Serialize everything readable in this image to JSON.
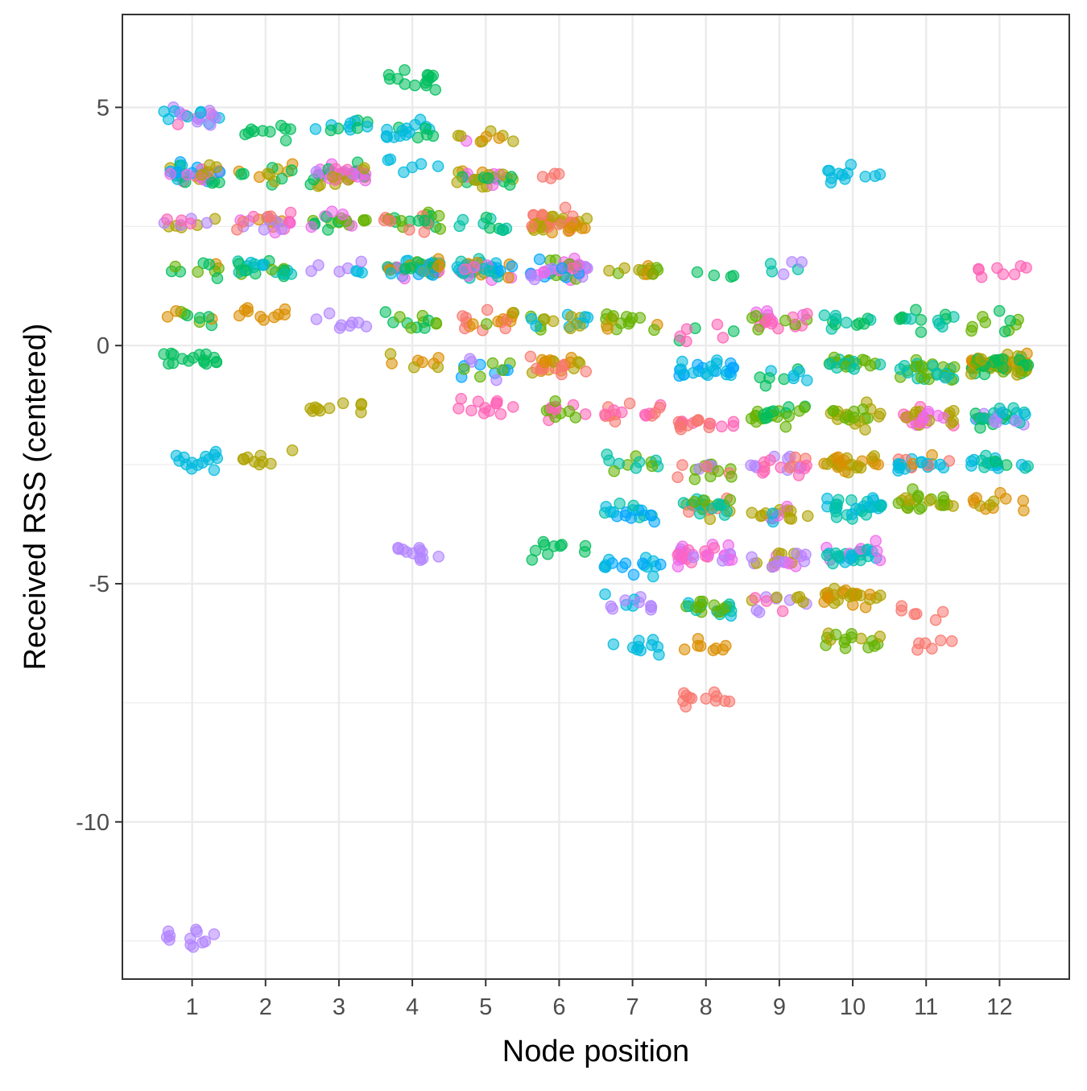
{
  "chart_data": {
    "type": "scatter",
    "xlabel": "Node position",
    "ylabel": "Received RSS (centered)",
    "x_ticks": [
      1,
      2,
      3,
      4,
      5,
      6,
      7,
      8,
      9,
      10,
      11,
      12
    ],
    "y_ticks": [
      5,
      0,
      -5,
      -10
    ],
    "xlim": [
      0.05,
      12.95
    ],
    "ylim": [
      -13.3,
      6.95
    ],
    "grid": true,
    "legend": "none",
    "point_alpha": 0.55,
    "palette": [
      "#F8766D",
      "#DB8E00",
      "#AEA200",
      "#64B200",
      "#00BD5C",
      "#00C1A7",
      "#00BADE",
      "#00A6FF",
      "#B385FF",
      "#EF67EB",
      "#FF63B6"
    ],
    "clusters": [
      {
        "x": 1,
        "y": 4.8,
        "n": 22,
        "c": [
          10,
          8,
          6
        ]
      },
      {
        "x": 1,
        "y": 3.6,
        "n": 38,
        "c": [
          9,
          6,
          7,
          10,
          2,
          4
        ]
      },
      {
        "x": 1,
        "y": 2.6,
        "n": 12,
        "c": [
          2,
          8,
          10
        ]
      },
      {
        "x": 1,
        "y": 1.6,
        "n": 10,
        "c": [
          4,
          3,
          1
        ]
      },
      {
        "x": 1,
        "y": 0.6,
        "n": 10,
        "c": [
          3,
          4,
          1
        ]
      },
      {
        "x": 1,
        "y": -0.3,
        "n": 16,
        "c": [
          4
        ]
      },
      {
        "x": 1,
        "y": -2.4,
        "n": 14,
        "c": [
          6
        ]
      },
      {
        "x": 1,
        "y": -12.4,
        "n": 12,
        "c": [
          8
        ]
      },
      {
        "x": 2,
        "y": 4.5,
        "n": 10,
        "c": [
          4
        ]
      },
      {
        "x": 2,
        "y": 3.6,
        "n": 14,
        "c": [
          4,
          2,
          1
        ]
      },
      {
        "x": 2,
        "y": 2.6,
        "n": 24,
        "c": [
          0,
          1,
          10,
          8,
          9
        ]
      },
      {
        "x": 2,
        "y": 1.6,
        "n": 26,
        "c": [
          5,
          6,
          3,
          4
        ]
      },
      {
        "x": 2,
        "y": 0.7,
        "n": 10,
        "c": [
          1
        ]
      },
      {
        "x": 2,
        "y": -2.4,
        "n": 9,
        "c": [
          2
        ]
      },
      {
        "x": 3,
        "y": 4.6,
        "n": 12,
        "c": [
          4,
          6
        ]
      },
      {
        "x": 3,
        "y": 3.6,
        "n": 44,
        "c": [
          8,
          9,
          10,
          4,
          2
        ]
      },
      {
        "x": 3,
        "y": 2.6,
        "n": 20,
        "c": [
          3,
          4,
          9
        ]
      },
      {
        "x": 3,
        "y": 1.6,
        "n": 8,
        "c": [
          6,
          8
        ]
      },
      {
        "x": 3,
        "y": 0.5,
        "n": 8,
        "c": [
          8
        ]
      },
      {
        "x": 3,
        "y": -1.3,
        "n": 10,
        "c": [
          2
        ]
      },
      {
        "x": 4,
        "y": 5.6,
        "n": 14,
        "c": [
          4
        ]
      },
      {
        "x": 4,
        "y": 4.5,
        "n": 18,
        "c": [
          4,
          6
        ]
      },
      {
        "x": 4,
        "y": 3.8,
        "n": 6,
        "c": [
          6
        ]
      },
      {
        "x": 4,
        "y": 2.6,
        "n": 24,
        "c": [
          3,
          4,
          0
        ]
      },
      {
        "x": 4,
        "y": 1.6,
        "n": 46,
        "c": [
          6,
          7,
          2,
          1,
          9,
          4
        ]
      },
      {
        "x": 4,
        "y": 0.5,
        "n": 12,
        "c": [
          3,
          4
        ]
      },
      {
        "x": 4,
        "y": -0.4,
        "n": 8,
        "c": [
          2,
          1
        ]
      },
      {
        "x": 4,
        "y": -4.4,
        "n": 12,
        "c": [
          8
        ]
      },
      {
        "x": 5,
        "y": 4.4,
        "n": 10,
        "c": [
          2,
          1,
          9
        ]
      },
      {
        "x": 5,
        "y": 3.5,
        "n": 30,
        "c": [
          2,
          1,
          9,
          4
        ]
      },
      {
        "x": 5,
        "y": 2.6,
        "n": 10,
        "c": [
          5,
          4
        ]
      },
      {
        "x": 5,
        "y": 1.6,
        "n": 44,
        "c": [
          7,
          6,
          9,
          1,
          5
        ]
      },
      {
        "x": 5,
        "y": 0.5,
        "n": 18,
        "c": [
          0,
          3,
          1
        ]
      },
      {
        "x": 5,
        "y": -0.5,
        "n": 14,
        "c": [
          7,
          8,
          3
        ]
      },
      {
        "x": 5,
        "y": -1.3,
        "n": 12,
        "c": [
          10
        ]
      },
      {
        "x": 6,
        "y": 3.5,
        "n": 4,
        "c": [
          0
        ]
      },
      {
        "x": 6,
        "y": 2.6,
        "n": 42,
        "c": [
          0,
          1,
          2
        ]
      },
      {
        "x": 6,
        "y": 1.6,
        "n": 42,
        "c": [
          9,
          10,
          8,
          7,
          3
        ]
      },
      {
        "x": 6,
        "y": 0.5,
        "n": 18,
        "c": [
          2,
          6,
          3
        ]
      },
      {
        "x": 6,
        "y": -0.4,
        "n": 26,
        "c": [
          1,
          0,
          2
        ]
      },
      {
        "x": 6,
        "y": -1.4,
        "n": 14,
        "c": [
          3,
          10
        ]
      },
      {
        "x": 6,
        "y": -4.3,
        "n": 10,
        "c": [
          4
        ]
      },
      {
        "x": 7,
        "y": 1.6,
        "n": 14,
        "c": [
          2,
          1,
          3
        ]
      },
      {
        "x": 7,
        "y": 0.5,
        "n": 16,
        "c": [
          2,
          1,
          3
        ]
      },
      {
        "x": 7,
        "y": -1.4,
        "n": 16,
        "c": [
          0,
          10
        ]
      },
      {
        "x": 7,
        "y": -2.5,
        "n": 12,
        "c": [
          3,
          5
        ]
      },
      {
        "x": 7,
        "y": -3.5,
        "n": 18,
        "c": [
          6,
          5,
          7
        ]
      },
      {
        "x": 7,
        "y": -4.6,
        "n": 16,
        "c": [
          7,
          6
        ]
      },
      {
        "x": 7,
        "y": -5.4,
        "n": 12,
        "c": [
          6,
          8
        ]
      },
      {
        "x": 7,
        "y": -6.3,
        "n": 10,
        "c": [
          6
        ]
      },
      {
        "x": 8,
        "y": 1.5,
        "n": 4,
        "c": [
          4
        ]
      },
      {
        "x": 8,
        "y": 0.3,
        "n": 8,
        "c": [
          10,
          4
        ]
      },
      {
        "x": 8,
        "y": -0.5,
        "n": 24,
        "c": [
          7,
          6
        ]
      },
      {
        "x": 8,
        "y": -1.6,
        "n": 18,
        "c": [
          0,
          10
        ]
      },
      {
        "x": 8,
        "y": -2.6,
        "n": 16,
        "c": [
          8,
          3,
          0
        ]
      },
      {
        "x": 8,
        "y": -3.4,
        "n": 30,
        "c": [
          2,
          3,
          0,
          5
        ]
      },
      {
        "x": 8,
        "y": -4.4,
        "n": 30,
        "c": [
          9,
          8,
          10
        ]
      },
      {
        "x": 8,
        "y": -5.5,
        "n": 22,
        "c": [
          5,
          6,
          3
        ]
      },
      {
        "x": 8,
        "y": -6.3,
        "n": 8,
        "c": [
          1
        ]
      },
      {
        "x": 8,
        "y": -7.4,
        "n": 12,
        "c": [
          0
        ]
      },
      {
        "x": 9,
        "y": 1.7,
        "n": 6,
        "c": [
          5,
          8
        ]
      },
      {
        "x": 9,
        "y": 0.5,
        "n": 22,
        "c": [
          3,
          9,
          10
        ]
      },
      {
        "x": 9,
        "y": -0.6,
        "n": 10,
        "c": [
          6,
          4
        ]
      },
      {
        "x": 9,
        "y": -1.4,
        "n": 22,
        "c": [
          3,
          4
        ]
      },
      {
        "x": 9,
        "y": -2.5,
        "n": 22,
        "c": [
          0,
          10,
          8
        ]
      },
      {
        "x": 9,
        "y": -3.5,
        "n": 18,
        "c": [
          2,
          6,
          9
        ]
      },
      {
        "x": 9,
        "y": -4.5,
        "n": 22,
        "c": [
          2,
          9,
          8
        ]
      },
      {
        "x": 9,
        "y": -5.4,
        "n": 14,
        "c": [
          2,
          8,
          10
        ]
      },
      {
        "x": 10,
        "y": 3.6,
        "n": 12,
        "c": [
          6
        ]
      },
      {
        "x": 10,
        "y": 0.5,
        "n": 12,
        "c": [
          4,
          5
        ]
      },
      {
        "x": 10,
        "y": -0.4,
        "n": 22,
        "c": [
          3,
          5
        ]
      },
      {
        "x": 10,
        "y": -1.5,
        "n": 22,
        "c": [
          3,
          2
        ]
      },
      {
        "x": 10,
        "y": -2.5,
        "n": 26,
        "c": [
          1,
          2
        ]
      },
      {
        "x": 10,
        "y": -3.4,
        "n": 28,
        "c": [
          5,
          6
        ]
      },
      {
        "x": 10,
        "y": -4.4,
        "n": 30,
        "c": [
          6,
          9,
          5
        ]
      },
      {
        "x": 10,
        "y": -5.3,
        "n": 26,
        "c": [
          2,
          1
        ]
      },
      {
        "x": 10,
        "y": -6.2,
        "n": 16,
        "c": [
          2,
          3
        ]
      },
      {
        "x": 11,
        "y": 0.6,
        "n": 14,
        "c": [
          4,
          5
        ]
      },
      {
        "x": 11,
        "y": -0.5,
        "n": 30,
        "c": [
          5,
          6,
          3
        ]
      },
      {
        "x": 11,
        "y": -1.5,
        "n": 30,
        "c": [
          9,
          10,
          2
        ]
      },
      {
        "x": 11,
        "y": -2.5,
        "n": 22,
        "c": [
          1,
          0,
          6
        ]
      },
      {
        "x": 11,
        "y": -3.3,
        "n": 22,
        "c": [
          2,
          3
        ]
      },
      {
        "x": 11,
        "y": -5.6,
        "n": 6,
        "c": [
          0
        ]
      },
      {
        "x": 11,
        "y": -6.3,
        "n": 6,
        "c": [
          0
        ]
      },
      {
        "x": 12,
        "y": 1.6,
        "n": 8,
        "c": [
          10
        ]
      },
      {
        "x": 12,
        "y": 0.5,
        "n": 10,
        "c": [
          4,
          3
        ]
      },
      {
        "x": 12,
        "y": -0.4,
        "n": 70,
        "c": [
          3,
          4,
          2,
          1
        ]
      },
      {
        "x": 12,
        "y": -1.5,
        "n": 30,
        "c": [
          6,
          5,
          8,
          4
        ]
      },
      {
        "x": 12,
        "y": -2.5,
        "n": 20,
        "c": [
          4,
          5,
          6
        ]
      },
      {
        "x": 12,
        "y": -3.3,
        "n": 12,
        "c": [
          1,
          2
        ]
      }
    ]
  }
}
